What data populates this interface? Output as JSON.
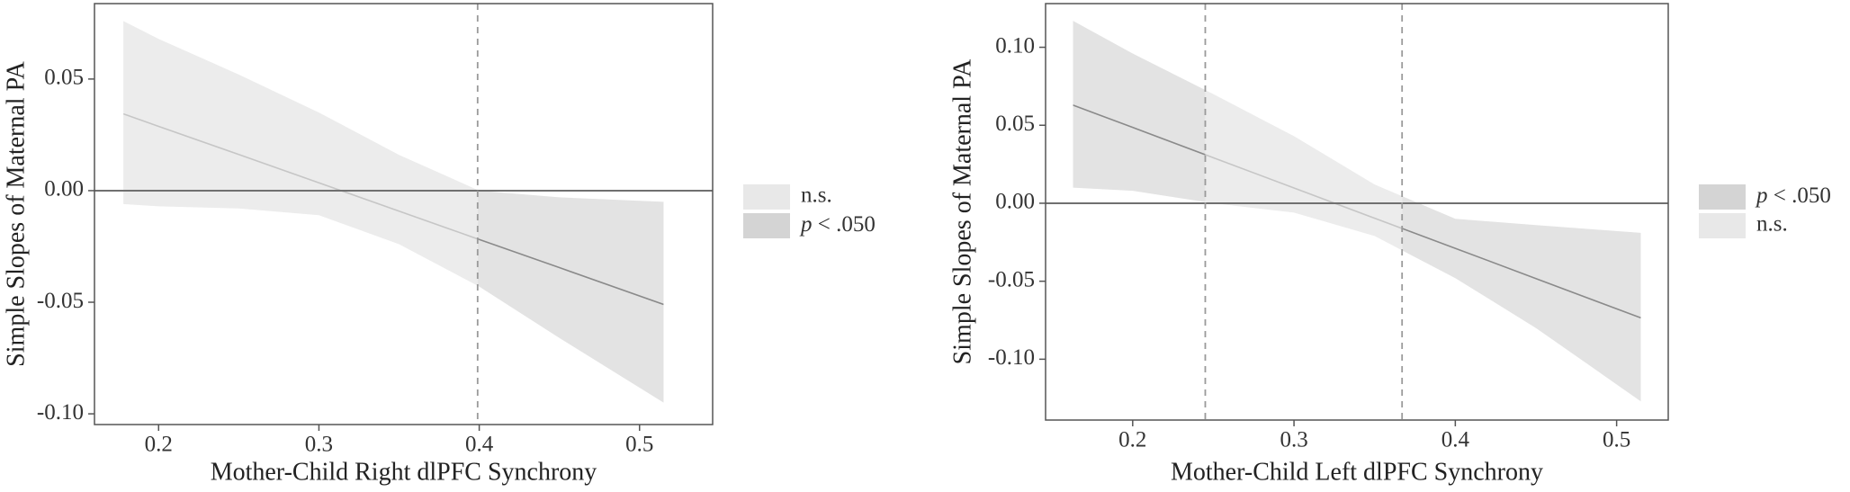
{
  "chart_data": [
    {
      "type": "band",
      "x_label": "Mother-Child Right dlPFC Synchrony",
      "y_label": "Simple Slopes of Maternal PA",
      "xlim": [
        0.16,
        0.5456
      ],
      "ylim": [
        -0.1048,
        0.0838
      ],
      "xticks": [
        0.2,
        0.3,
        0.4,
        0.5
      ],
      "yticks": [
        {
          "value": -0.1,
          "label": "-0.10"
        },
        -0.05,
        {
          "value": 0,
          "label": "0.00"
        },
        0.05
      ],
      "reference_line": 0,
      "thresholds": [
        0.399
      ],
      "x": [
        0.178,
        0.2,
        0.25,
        0.3,
        0.35,
        0.4,
        0.45,
        0.515
      ],
      "estimate": [
        0.0344,
        0.0288,
        0.0162,
        0.0035,
        -0.0092,
        -0.0219,
        -0.0345,
        -0.051
      ],
      "upper": [
        0.076,
        0.068,
        0.052,
        0.035,
        0.016,
        0.0,
        -0.003,
        -0.005
      ],
      "lower": [
        -0.006,
        -0.007,
        -0.008,
        -0.011,
        -0.024,
        -0.043,
        -0.066,
        -0.095
      ],
      "legend": [
        {
          "name": "n.s.",
          "color": "#ececec",
          "swatch": "#e8e8e8",
          "line_color": "#c6c6c6",
          "ranges": [
            [
              0.178,
              0.399
            ]
          ]
        },
        {
          "name": "p < .050",
          "color": "#e3e3e3",
          "swatch": "#d4d4d4",
          "line_color": "#8a8a8a",
          "ranges": [
            [
              0.399,
              0.515
            ]
          ]
        }
      ]
    },
    {
      "type": "band",
      "x_label": "Mother-Child Left dlPFC Synchrony",
      "y_label": "Simple Slopes of Maternal PA",
      "xlim": [
        0.146,
        0.532
      ],
      "ylim": [
        -0.139,
        0.128
      ],
      "xticks": [
        0.2,
        0.3,
        0.4,
        0.5
      ],
      "yticks": [
        {
          "value": -0.1,
          "label": "-0.10"
        },
        -0.05,
        {
          "value": 0,
          "label": "0.00"
        },
        0.05,
        {
          "value": 0.1,
          "label": "0.10"
        }
      ],
      "reference_line": 0,
      "thresholds": [
        0.245,
        0.367
      ],
      "x": [
        0.163,
        0.2,
        0.25,
        0.3,
        0.35,
        0.4,
        0.45,
        0.515
      ],
      "estimate": [
        0.0629,
        0.0486,
        0.0292,
        0.0098,
        -0.0096,
        -0.0289,
        -0.0483,
        -0.0735
      ],
      "upper": [
        0.117,
        0.096,
        0.07,
        0.043,
        0.012,
        -0.01,
        -0.014,
        -0.019
      ],
      "lower": [
        0.01,
        0.008,
        0.0,
        -0.006,
        -0.021,
        -0.048,
        -0.08,
        -0.127
      ],
      "legend": [
        {
          "name": "p < .050",
          "color": "#e3e3e3",
          "swatch": "#d4d4d4",
          "line_color": "#8a8a8a",
          "ranges": [
            [
              0.163,
              0.245
            ],
            [
              0.367,
              0.515
            ]
          ]
        },
        {
          "name": "n.s.",
          "color": "#ececec",
          "swatch": "#e8e8e8",
          "line_color": "#c6c6c6",
          "ranges": [
            [
              0.245,
              0.367
            ]
          ]
        }
      ]
    }
  ]
}
